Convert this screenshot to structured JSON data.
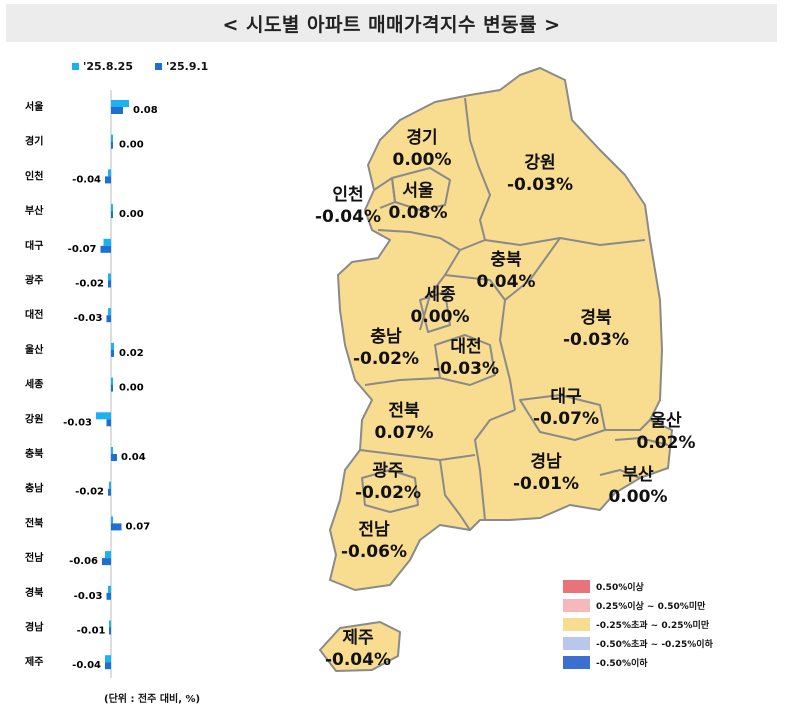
{
  "title": "< 시도별 아파트 매매가격지수 변동률 >",
  "legend": [
    {
      "label": "'25.8.25",
      "color": "#1ab2f0"
    },
    {
      "label": "'25.9.1",
      "color": "#1e6fd0"
    }
  ],
  "unit": "(단위 : 전주 대비, %)",
  "chart_data": {
    "type": "bar",
    "orientation": "horizontal",
    "categories": [
      "서울",
      "경기",
      "인천",
      "부산",
      "대구",
      "광주",
      "대전",
      "울산",
      "세종",
      "강원",
      "충북",
      "충남",
      "전북",
      "전남",
      "경북",
      "경남",
      "제주"
    ],
    "series": [
      {
        "name": "'25.8.25",
        "values": [
          0.12,
          0.0,
          -0.02,
          0.0,
          -0.05,
          -0.02,
          -0.02,
          0.02,
          0.0,
          -0.1,
          0.0,
          -0.01,
          0.01,
          -0.04,
          -0.02,
          -0.01,
          -0.04
        ]
      },
      {
        "name": "'25.9.1",
        "values": [
          0.08,
          0.0,
          -0.04,
          0.0,
          -0.07,
          -0.02,
          -0.03,
          0.02,
          0.0,
          -0.03,
          0.04,
          -0.02,
          0.07,
          -0.06,
          -0.03,
          -0.01,
          -0.04
        ]
      }
    ],
    "value_labels": [
      "0.08",
      "0.00",
      "-0.04",
      "0.00",
      "-0.07",
      "-0.02",
      "-0.03",
      "0.02",
      "0.00",
      "-0.03",
      "0.04",
      "-0.02",
      "0.07",
      "-0.06",
      "-0.03",
      "-0.01",
      "-0.04"
    ]
  },
  "map": {
    "regions": [
      {
        "name": "경기",
        "value": "0.00%"
      },
      {
        "name": "강원",
        "value": "-0.03%"
      },
      {
        "name": "인천",
        "value": "-0.04%"
      },
      {
        "name": "서울",
        "value": "0.08%"
      },
      {
        "name": "충북",
        "value": "0.04%"
      },
      {
        "name": "세종",
        "value": "0.00%"
      },
      {
        "name": "경북",
        "value": "-0.03%"
      },
      {
        "name": "충남",
        "value": "-0.02%"
      },
      {
        "name": "대전",
        "value": "-0.03%"
      },
      {
        "name": "대구",
        "value": "-0.07%"
      },
      {
        "name": "울산",
        "value": "0.02%"
      },
      {
        "name": "전북",
        "value": "0.07%"
      },
      {
        "name": "경남",
        "value": "-0.01%"
      },
      {
        "name": "부산",
        "value": "0.00%"
      },
      {
        "name": "광주",
        "value": "-0.02%"
      },
      {
        "name": "전남",
        "value": "-0.06%"
      },
      {
        "name": "제주",
        "value": "-0.04%"
      }
    ],
    "fill_color": "#f8dc8f",
    "border_color": "#8a8a8a",
    "legend": [
      {
        "label": "0.50%이상",
        "color": "#e8737a"
      },
      {
        "label": "0.25%이상 ~ 0.50%미만",
        "color": "#f6b8bd"
      },
      {
        "label": "-0.25%초과 ~ 0.25%미만",
        "color": "#f8dc8f"
      },
      {
        "label": "-0.50%초과 ~ -0.25%이하",
        "color": "#b8c8ea"
      },
      {
        "label": "-0.50%이하",
        "color": "#3d6fd0"
      }
    ]
  }
}
